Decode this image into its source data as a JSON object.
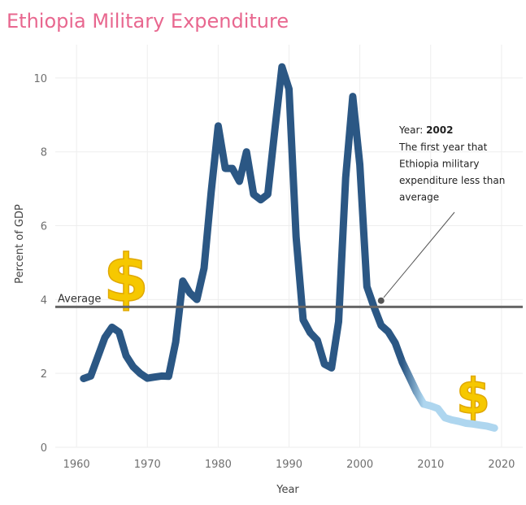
{
  "chart_data": {
    "type": "line",
    "title": "Ethiopia Military Expenditure",
    "xlabel": "Year",
    "ylabel": "Percent of GDP",
    "xlim": [
      1957,
      2023
    ],
    "ylim": [
      0,
      10.9
    ],
    "x_ticks": [
      1960,
      1970,
      1980,
      1990,
      2000,
      2010,
      2020
    ],
    "y_ticks": [
      0,
      2,
      4,
      6,
      8,
      10
    ],
    "grid": true,
    "series": [
      {
        "color": "#2b5784",
        "highlight_color": "#aed6ef",
        "highlight_from": 2008,
        "x": [
          1961,
          1962,
          1963,
          1964,
          1965,
          1966,
          1967,
          1968,
          1969,
          1970,
          1971,
          1972,
          1973,
          1974,
          1975,
          1976,
          1977,
          1978,
          1979,
          1980,
          1981,
          1982,
          1983,
          1984,
          1985,
          1986,
          1987,
          1988,
          1989,
          1990,
          1991,
          1992,
          1993,
          1994,
          1995,
          1996,
          1997,
          1998,
          1999,
          2000,
          2001,
          2002,
          2003,
          2004,
          2005,
          2006,
          2007,
          2008,
          2009,
          2010,
          2011,
          2012,
          2013,
          2014,
          2015,
          2016,
          2017,
          2018,
          2019
        ],
        "values": [
          1.86,
          1.93,
          2.45,
          2.97,
          3.25,
          3.12,
          2.48,
          2.18,
          2.0,
          1.87,
          1.9,
          1.93,
          1.92,
          2.85,
          4.5,
          4.18,
          4.0,
          4.85,
          6.9,
          8.7,
          7.55,
          7.55,
          7.2,
          8.0,
          6.85,
          6.7,
          6.85,
          8.6,
          10.3,
          9.7,
          5.7,
          3.45,
          3.1,
          2.9,
          2.25,
          2.15,
          3.4,
          7.3,
          9.5,
          7.65,
          4.35,
          3.8,
          3.3,
          3.13,
          2.82,
          2.3,
          1.9,
          1.5,
          1.17,
          1.12,
          1.05,
          0.8,
          0.74,
          0.7,
          0.65,
          0.63,
          0.6,
          0.57,
          0.52
        ]
      }
    ],
    "reference_line": {
      "label": "Average",
      "value": 3.8,
      "color": "#666666"
    },
    "annotation": {
      "x": 2003,
      "y": 3.97,
      "line1_prefix": "Year: ",
      "line1_value": "2002",
      "lines": [
        "The first year  that",
        "Ethiopia military",
        "expenditure less than",
        "average"
      ]
    },
    "decorations": [
      {
        "glyph": "$",
        "icon": "dollar-sign-icon",
        "x": 1967,
        "y": 4.6,
        "size": 80
      },
      {
        "glyph": "$",
        "icon": "dollar-sign-icon",
        "x": 2016,
        "y": 1.4,
        "size": 60
      }
    ]
  }
}
